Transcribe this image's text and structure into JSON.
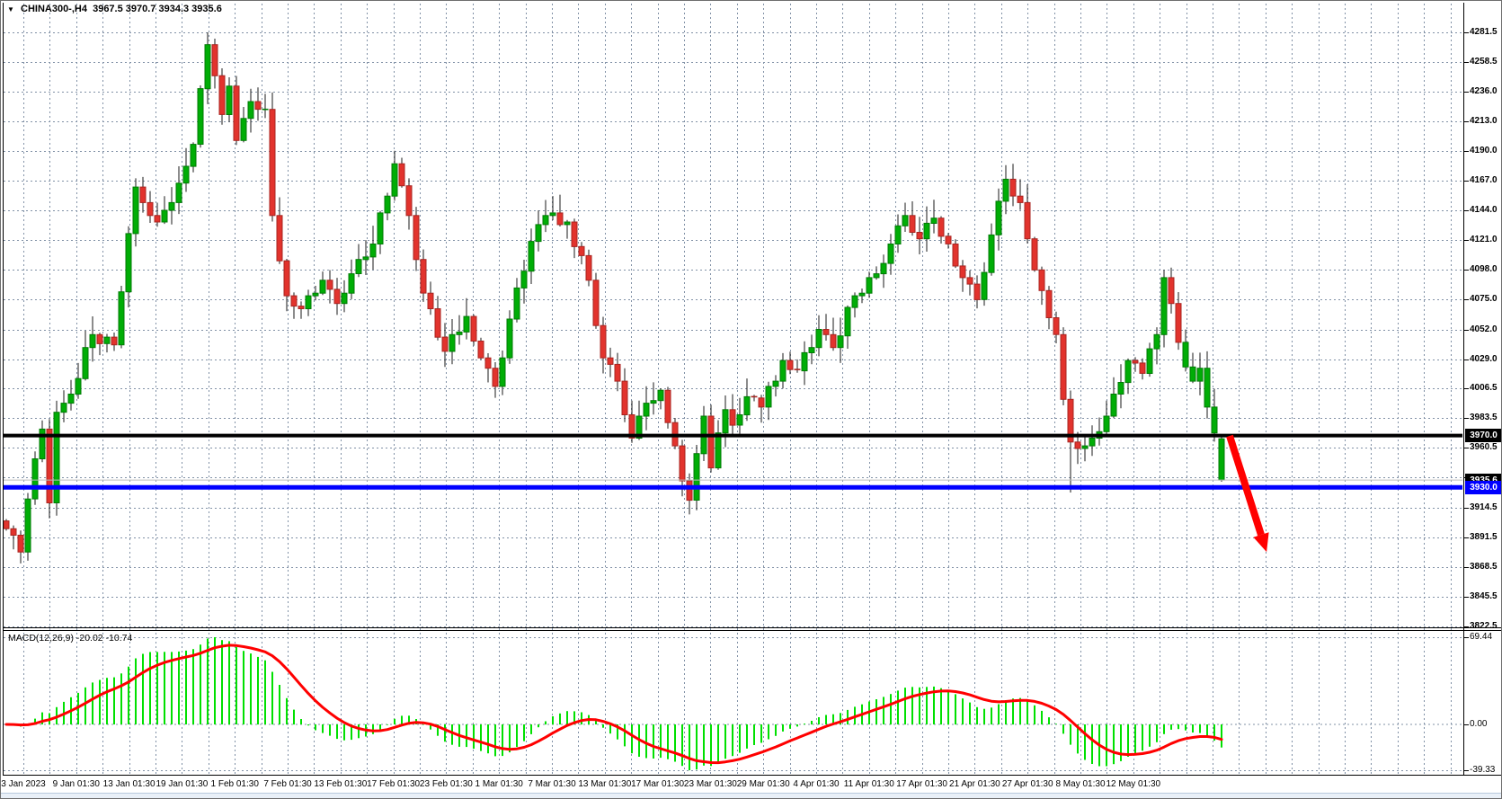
{
  "window": {
    "title_symbol": "CHINA300-,H4",
    "title_ohlc": "  3967.5 3970.7 3934.3 3935.6",
    "menu_icon": "▼"
  },
  "chart_data": {
    "type": "candlestick",
    "symbol": "CHINA300-",
    "timeframe": "H4",
    "last_bar": {
      "open": 3967.5,
      "high": 3970.7,
      "low": 3934.3,
      "close": 3935.6
    },
    "price_axis": {
      "max": 4281.5,
      "min": 3822.5,
      "visible_labels": [
        "4281.5",
        "4258.5",
        "4236.0",
        "4213.0",
        "4190.0",
        "4167.0",
        "4144.0",
        "4121.0",
        "4098.0",
        "4075.0",
        "4052.0",
        "4029.0",
        "4006.5",
        "3983.5",
        "3960.5",
        "3914.5",
        "3891.5",
        "3868.5",
        "3845.5",
        "3822.5"
      ],
      "grid_prices": [
        4281.5,
        4258.5,
        4236.0,
        4213.0,
        4190.0,
        4167.0,
        4144.0,
        4121.0,
        4098.0,
        4075.0,
        4052.0,
        4029.0,
        4006.5,
        3983.5,
        3960.5,
        3937.5,
        3914.5,
        3891.5,
        3868.5,
        3845.5,
        3822.5
      ]
    },
    "time_axis": {
      "labels": [
        "3 Jan 2023",
        "9 Jan 01:30",
        "13 Jan 01:30",
        "19 Jan 01:30",
        "1 Feb 01:30",
        "7 Feb 01:30",
        "13 Feb 01:30",
        "17 Feb 01:30",
        "23 Feb 01:30",
        "1 Mar 01:30",
        "7 Mar 01:30",
        "13 Mar 01:30",
        "17 Mar 01:30",
        "23 Mar 01:30",
        "29 Mar 01:30",
        "4 Apr 01:30",
        "11 Apr 01:30",
        "17 Apr 01:30",
        "21 Apr 01:30",
        "27 Apr 01:30",
        "8 May 01:30",
        "12 May 01:30"
      ]
    },
    "candles": {
      "first_open": 3904,
      "closes": [
        3898,
        3893,
        3880,
        3921,
        3952,
        3975,
        3918,
        3988,
        3995,
        4002,
        4014,
        4038,
        4048,
        4041,
        4046,
        4040,
        4081,
        4126,
        4162,
        4150,
        4140,
        4135,
        4144,
        4150,
        4165,
        4178,
        4195,
        4238,
        4272,
        4248,
        4218,
        4240,
        4198,
        4215,
        4228,
        4222,
        4222,
        4140,
        4105,
        4078,
        4070,
        4068,
        4078,
        4080,
        4090,
        4083,
        4072,
        4080,
        4095,
        4106,
        4108,
        4118,
        4142,
        4155,
        4180,
        4163,
        4140,
        4106,
        4080,
        4068,
        4046,
        4035,
        4048,
        4050,
        4062,
        4043,
        4030,
        4022,
        4008,
        4030,
        4060,
        4084,
        4097,
        4120,
        4133,
        4140,
        4142,
        4133,
        4135,
        4116,
        4109,
        4090,
        4055,
        4030,
        4025,
        4012,
        3986,
        3968,
        3985,
        3995,
        3997,
        4005,
        3980,
        3962,
        3935,
        3920,
        3956,
        3985,
        3945,
        3972,
        3990,
        3978,
        3986,
        4000,
        3999,
        3992,
        4008,
        4012,
        4028,
        4021,
        4020,
        4034,
        4038,
        4052,
        4048,
        4038,
        4047,
        4069,
        4078,
        4080,
        4092,
        4095,
        4103,
        4118,
        4132,
        4140,
        4127,
        4122,
        4134,
        4138,
        4124,
        4118,
        4101,
        4092,
        4087,
        4075,
        4096,
        4125,
        4151,
        4168,
        4155,
        4150,
        4122,
        4098,
        4082,
        4061,
        4048,
        3998,
        3965,
        3960,
        3962,
        3968,
        3973,
        3985,
        4002,
        4011,
        4028,
        4026,
        4018,
        4037,
        4048,
        4092,
        4072,
        4042,
        4023,
        4012,
        4022,
        3992,
        3972,
        3935.6
      ],
      "wick_overrides": {
        "6": {
          "low": 3906
        },
        "28": {
          "high": 4281.5
        },
        "54": {
          "high": 4190
        },
        "95": {
          "low": 3909
        },
        "148": {
          "low": 3926
        },
        "161": {
          "high": 4098
        },
        "169": {
          "open": 3967.5,
          "high": 3970.7,
          "low": 3934.3
        }
      },
      "green_overrides": [
        164,
        165,
        166,
        167,
        168,
        169
      ]
    },
    "hlines": [
      {
        "price": 3970.0,
        "color": "#000000",
        "thickness": 4,
        "label": "3970.0",
        "badge": "#000000"
      },
      {
        "price": 3935.6,
        "color": "#BDBDBD",
        "thickness": 1,
        "label": "3935.6",
        "badge": "#000000"
      },
      {
        "price": 3930.0,
        "color": "#0000FF",
        "thickness": 5,
        "label": "3930.0",
        "badge": "#0000FF"
      }
    ],
    "macd": {
      "label": "MACD(12,26,9) -20.02 -10.74",
      "fast": 12,
      "slow": 26,
      "signal_period": 9,
      "value": -20.02,
      "signal_value": -10.74,
      "axis_labels": [
        "69.44",
        "0.00",
        "-39.33"
      ],
      "histogram_color": "#00E000",
      "signal_color": "#FF0000"
    },
    "annotation_arrow": {
      "from": [
        1367,
        484
      ],
      "to": [
        1402,
        594
      ],
      "color": "#FF0000"
    },
    "colors": {
      "up_fill": "#00AD06",
      "up_border": "#007A04",
      "down_fill": "#E2332D",
      "down_border": "#A82420",
      "wick": "#1A1A1A",
      "grid": "#8191A6",
      "axis_text": "#000000",
      "background": "#FFFFFF",
      "hline_black": "#000000",
      "hline_blue": "#0000FF",
      "bid_line": "#BDBDBD"
    }
  }
}
